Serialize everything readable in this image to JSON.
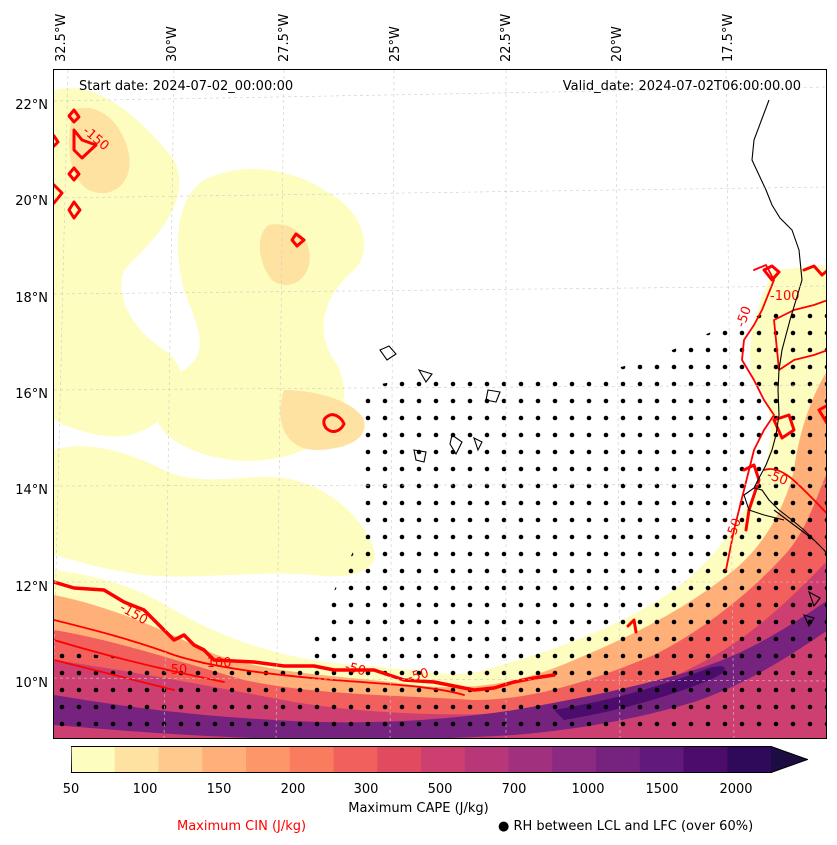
{
  "header": {
    "start_date": "Start date: 2024-07-02_00:00:00",
    "valid_date": "Valid_date: 2024-07-02T06:00:00.00"
  },
  "lon_labels": [
    "32.5°W",
    "30°W",
    "27.5°W",
    "25°W",
    "22.5°W",
    "20°W",
    "17.5°W"
  ],
  "lat_labels": [
    "22°N",
    "20°N",
    "18°N",
    "16°N",
    "14°N",
    "12°N",
    "10°N"
  ],
  "contour_labels": [
    "-150",
    "-150",
    "-100",
    "-50",
    "-50",
    "-50",
    "-100",
    "-50",
    "-50",
    "-50"
  ],
  "colorbar": {
    "label": "Maximum CAPE (J/kg)",
    "ticks": [
      "50",
      "100",
      "150",
      "200",
      "300",
      "500",
      "700",
      "1000",
      "1500",
      "2000"
    ],
    "colors": [
      "#fcfdbf",
      "#fde2a1",
      "#fec98d",
      "#feb078",
      "#fd9668",
      "#fa7c5e",
      "#f1605d",
      "#e24b5f",
      "#cd3f70",
      "#b73779",
      "#a1307e",
      "#8c2981",
      "#76227f",
      "#611a7c",
      "#4b0c6b",
      "#2f0a5b",
      "#1b0c41"
    ]
  },
  "legend": {
    "cin_label": "Maximum CIN (J/kg)",
    "cin_color": "#ff0000",
    "rh_label": "RH between LCL and LFC (over 60%)"
  }
}
